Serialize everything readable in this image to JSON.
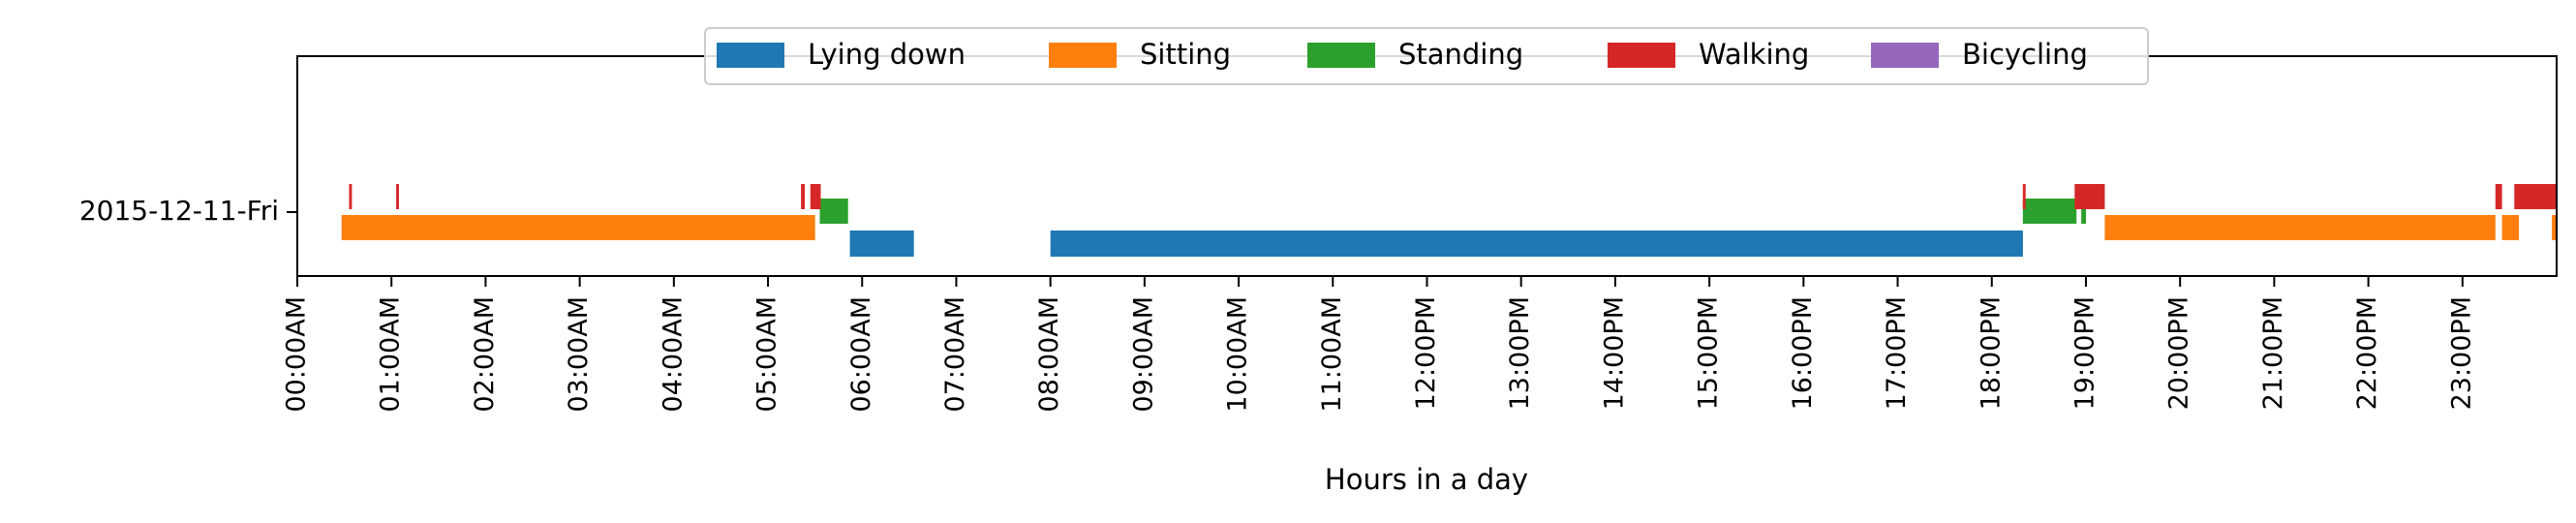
{
  "chart_data": {
    "type": "timeline",
    "title": "",
    "xlabel": "Hours in a day",
    "ylabel": "",
    "xlim": [
      0,
      24
    ],
    "row_label": "2015-12-11-Fri",
    "x_ticks": [
      "00:00AM",
      "01:00AM",
      "02:00AM",
      "03:00AM",
      "04:00AM",
      "05:00AM",
      "06:00AM",
      "07:00AM",
      "08:00AM",
      "09:00AM",
      "10:00AM",
      "11:00AM",
      "12:00PM",
      "13:00PM",
      "14:00PM",
      "15:00PM",
      "16:00PM",
      "17:00PM",
      "18:00PM",
      "19:00PM",
      "20:00PM",
      "21:00PM",
      "22:00PM",
      "23:00PM"
    ],
    "legend_position": "top-center",
    "grid": false,
    "series": [
      {
        "name": "Lying down",
        "color": "#1f77b4",
        "intervals": [
          [
            5.87,
            6.55
          ],
          [
            8.0,
            18.33
          ]
        ]
      },
      {
        "name": "Sitting",
        "color": "#ff7f0e",
        "intervals": [
          [
            0.47,
            5.5
          ],
          [
            19.2,
            23.35
          ],
          [
            23.42,
            23.6
          ],
          [
            23.95,
            24.0
          ]
        ]
      },
      {
        "name": "Standing",
        "color": "#2ca02c",
        "intervals": [
          [
            5.55,
            5.85
          ],
          [
            18.33,
            18.9
          ],
          [
            18.95,
            19.0
          ]
        ]
      },
      {
        "name": "Walking",
        "color": "#d62728",
        "intervals": [
          [
            0.55,
            0.58
          ],
          [
            1.05,
            1.08
          ],
          [
            5.35,
            5.39
          ],
          [
            5.45,
            5.56
          ],
          [
            18.33,
            18.36
          ],
          [
            18.88,
            19.2
          ],
          [
            23.35,
            23.42
          ],
          [
            23.55,
            24.0
          ]
        ]
      },
      {
        "name": "Bicycling",
        "color": "#9467bd",
        "intervals": []
      }
    ]
  }
}
